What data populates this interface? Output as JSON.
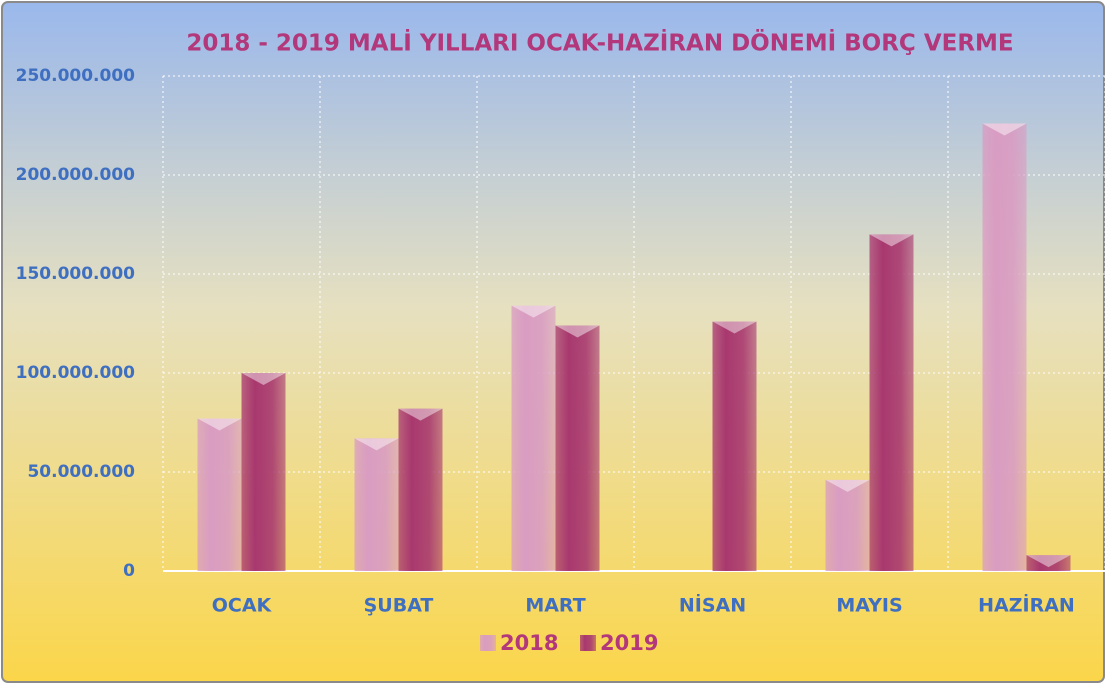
{
  "chart_data": {
    "type": "bar",
    "title": "2018 - 2019  MALİ YILLARI OCAK-HAZİRAN  DÖNEMİ  BORÇ VERME",
    "categories": [
      "OCAK",
      "ŞUBAT",
      "MART",
      "NİSAN",
      "MAYIS",
      "HAZİRAN"
    ],
    "series": [
      {
        "name": "2018",
        "color": "#d99cc2",
        "values": [
          77000000,
          67000000,
          134000000,
          null,
          46000000,
          226000000
        ]
      },
      {
        "name": "2019",
        "color": "#a8386f",
        "values": [
          100000000,
          82000000,
          124000000,
          126000000,
          170000000,
          8000000
        ]
      }
    ],
    "ylim": [
      0,
      250000000
    ],
    "yticks": [
      0,
      {
        "value": 50000000,
        "label": "50.000.000"
      },
      {
        "value": 100000000,
        "label": "100.000.000"
      },
      {
        "value": 150000000,
        "label": "150.000.000"
      },
      {
        "value": 200000000,
        "label": "200.000.000"
      },
      {
        "value": 250000000,
        "label": "250.000.000"
      }
    ],
    "grid": true
  }
}
